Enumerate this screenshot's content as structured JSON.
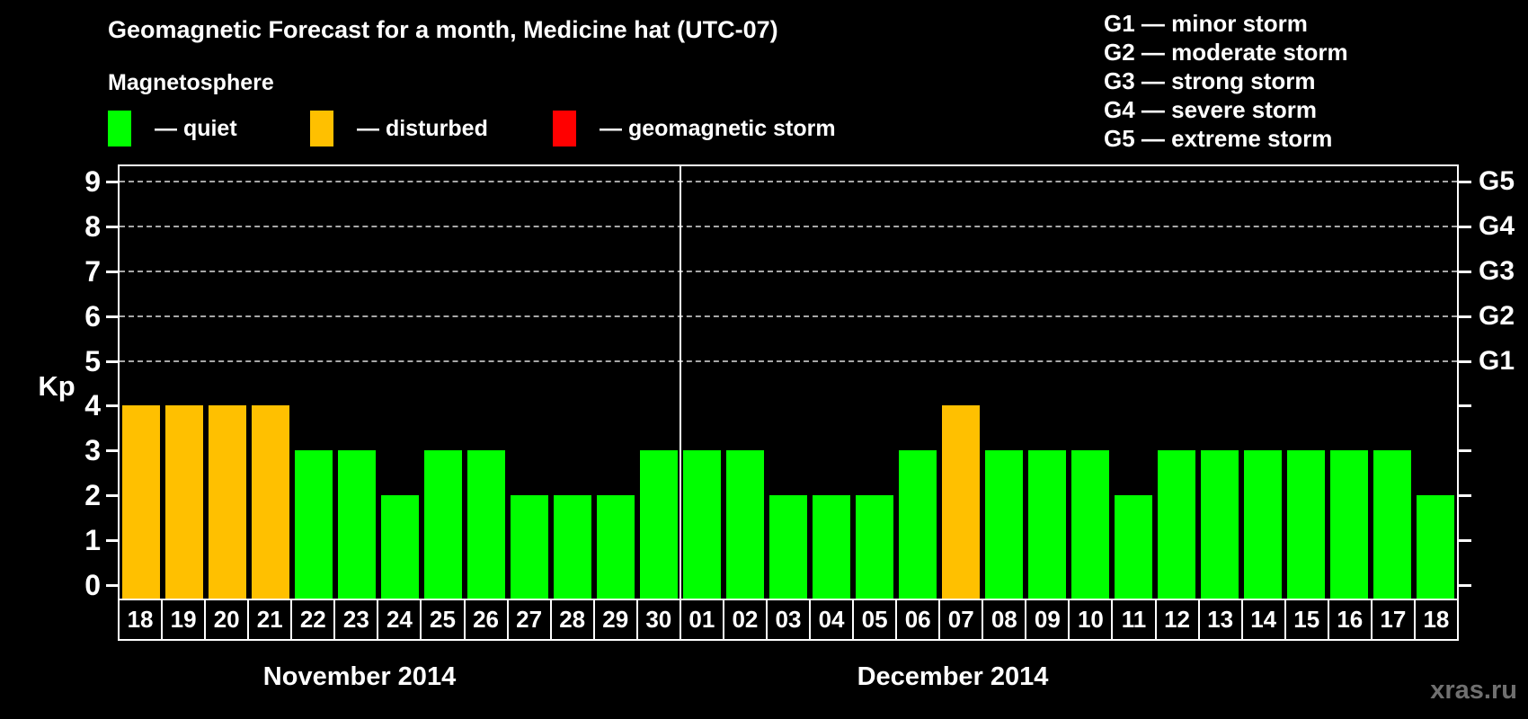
{
  "title": "Geomagnetic Forecast for a month, Medicine hat (UTC-07)",
  "subtitle": "Magnetosphere",
  "legend": {
    "items": [
      {
        "key": "quiet",
        "label": "— quiet",
        "color": "#00ff00"
      },
      {
        "key": "disturbed",
        "label": "— disturbed",
        "color": "#ffc000"
      },
      {
        "key": "storm",
        "label": "— geomagnetic storm",
        "color": "#ff0000"
      }
    ]
  },
  "g_scale_legend": [
    {
      "code": "G1",
      "desc": "minor storm"
    },
    {
      "code": "G2",
      "desc": "moderate storm"
    },
    {
      "code": "G3",
      "desc": "strong storm"
    },
    {
      "code": "G4",
      "desc": "severe storm"
    },
    {
      "code": "G5",
      "desc": "extreme storm"
    }
  ],
  "watermark": "xras.ru",
  "chart_data": {
    "type": "bar",
    "title": "Geomagnetic Forecast for a month, Medicine hat (UTC-07)",
    "ylabel": "Kp",
    "ylim": [
      0,
      9.4
    ],
    "yticks": [
      0,
      1,
      2,
      3,
      4,
      5,
      6,
      7,
      8,
      9
    ],
    "grid": "dashed horizontal at Kp 5-9 only",
    "gridlines_at": [
      5,
      6,
      7,
      8,
      9
    ],
    "right_axis_labels": [
      {
        "label": "G1",
        "kp": 5
      },
      {
        "label": "G2",
        "kp": 6
      },
      {
        "label": "G3",
        "kp": 7
      },
      {
        "label": "G4",
        "kp": 8
      },
      {
        "label": "G5",
        "kp": 9
      }
    ],
    "status_colors": {
      "quiet": "#00ff00",
      "disturbed": "#ffc000",
      "storm": "#ff0000"
    },
    "months": [
      {
        "label": "November 2014",
        "days": [
          {
            "day": "18",
            "kp": 4,
            "status": "disturbed"
          },
          {
            "day": "19",
            "kp": 4,
            "status": "disturbed"
          },
          {
            "day": "20",
            "kp": 4,
            "status": "disturbed"
          },
          {
            "day": "21",
            "kp": 4,
            "status": "disturbed"
          },
          {
            "day": "22",
            "kp": 3,
            "status": "quiet"
          },
          {
            "day": "23",
            "kp": 3,
            "status": "quiet"
          },
          {
            "day": "24",
            "kp": 2,
            "status": "quiet"
          },
          {
            "day": "25",
            "kp": 3,
            "status": "quiet"
          },
          {
            "day": "26",
            "kp": 3,
            "status": "quiet"
          },
          {
            "day": "27",
            "kp": 2,
            "status": "quiet"
          },
          {
            "day": "28",
            "kp": 2,
            "status": "quiet"
          },
          {
            "day": "29",
            "kp": 2,
            "status": "quiet"
          },
          {
            "day": "30",
            "kp": 3,
            "status": "quiet"
          }
        ]
      },
      {
        "label": "December 2014",
        "days": [
          {
            "day": "01",
            "kp": 3,
            "status": "quiet"
          },
          {
            "day": "02",
            "kp": 3,
            "status": "quiet"
          },
          {
            "day": "03",
            "kp": 2,
            "status": "quiet"
          },
          {
            "day": "04",
            "kp": 2,
            "status": "quiet"
          },
          {
            "day": "05",
            "kp": 2,
            "status": "quiet"
          },
          {
            "day": "06",
            "kp": 3,
            "status": "quiet"
          },
          {
            "day": "07",
            "kp": 4,
            "status": "disturbed"
          },
          {
            "day": "08",
            "kp": 3,
            "status": "quiet"
          },
          {
            "day": "09",
            "kp": 3,
            "status": "quiet"
          },
          {
            "day": "10",
            "kp": 3,
            "status": "quiet"
          },
          {
            "day": "11",
            "kp": 2,
            "status": "quiet"
          },
          {
            "day": "12",
            "kp": 3,
            "status": "quiet"
          },
          {
            "day": "13",
            "kp": 3,
            "status": "quiet"
          },
          {
            "day": "14",
            "kp": 3,
            "status": "quiet"
          },
          {
            "day": "15",
            "kp": 3,
            "status": "quiet"
          },
          {
            "day": "16",
            "kp": 3,
            "status": "quiet"
          },
          {
            "day": "17",
            "kp": 3,
            "status": "quiet"
          },
          {
            "day": "18",
            "kp": 2,
            "status": "quiet"
          }
        ]
      }
    ]
  }
}
